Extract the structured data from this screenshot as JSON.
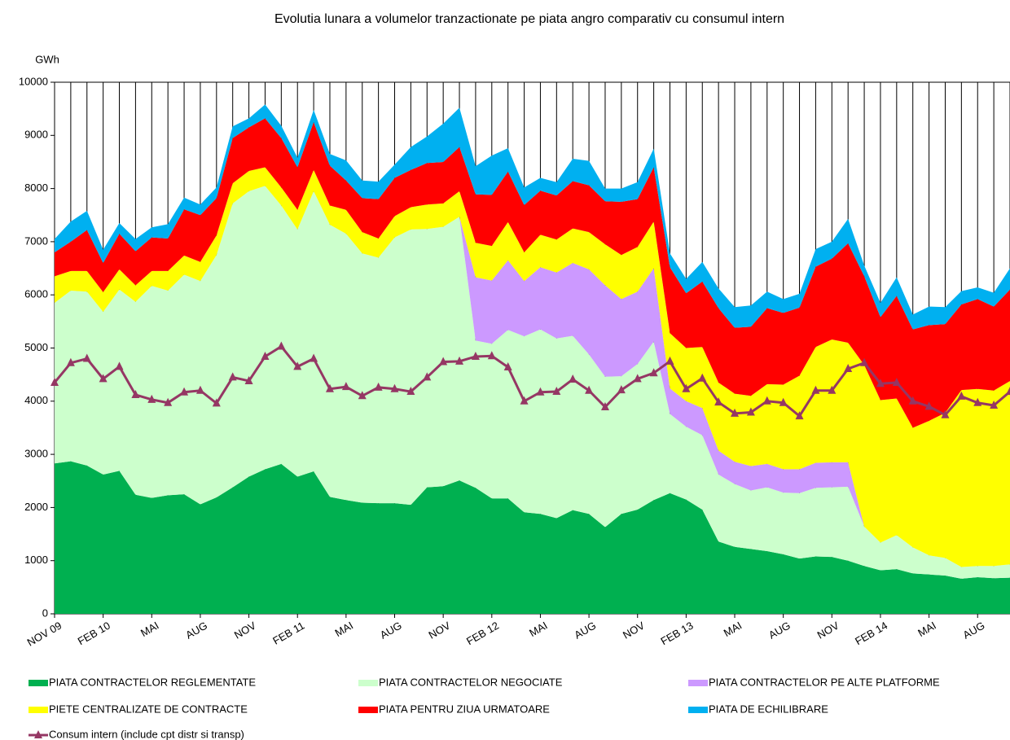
{
  "chart_data": {
    "type": "stacked-area-line",
    "title": "Evolutia lunara a volumelor tranzactionate pe piata angro comparativ cu consumul intern",
    "y_label": "GWh",
    "categories": [
      "NOV 09",
      null,
      null,
      "FEB 10",
      null,
      null,
      "MAI",
      null,
      null,
      "AUG",
      null,
      null,
      "NOV",
      null,
      null,
      "FEB 11",
      null,
      null,
      "MAI",
      null,
      null,
      "AUG",
      null,
      null,
      "NOV",
      null,
      null,
      "FEB 12",
      null,
      null,
      "MAI",
      null,
      null,
      "AUG",
      null,
      null,
      "NOV",
      null,
      null,
      "FEB 13",
      null,
      null,
      "MAI",
      null,
      null,
      "AUG",
      null,
      null,
      "NOV",
      null,
      null,
      "FEB 14",
      null,
      null,
      "MAI",
      null,
      null,
      "AUG",
      null,
      null
    ],
    "ylim": [
      0,
      10000
    ],
    "yticks": [
      0,
      1000,
      2000,
      3000,
      4000,
      5000,
      6000,
      7000,
      8000,
      9000,
      10000
    ],
    "vertical_grid": true,
    "legend": "bottom",
    "series": [
      {
        "name": "PIATA CONTRACTELOR REGLEMENTATE",
        "color": "#00b050",
        "values": [
          2830,
          2870,
          2790,
          2620,
          2690,
          2240,
          2180,
          2230,
          2250,
          2060,
          2190,
          2380,
          2580,
          2720,
          2820,
          2580,
          2680,
          2200,
          2140,
          2090,
          2080,
          2080,
          2050,
          2380,
          2400,
          2510,
          2370,
          2170,
          2170,
          1910,
          1880,
          1800,
          1950,
          1880,
          1630,
          1880,
          1960,
          2140,
          2270,
          2150,
          1960,
          1360,
          1260,
          1220,
          1180,
          1120,
          1040,
          1080,
          1070,
          1000,
          900,
          820,
          840,
          760,
          740,
          720,
          660,
          690,
          670,
          680
        ]
      },
      {
        "name": "PIATA CONTRACTELOR NEGOCIATE",
        "color": "#ccffcc",
        "values": [
          3020,
          3210,
          3270,
          3060,
          3410,
          3630,
          3990,
          3850,
          4130,
          4200,
          4560,
          5340,
          5370,
          5330,
          4860,
          4650,
          5270,
          5120,
          5010,
          4690,
          4620,
          5000,
          5180,
          4860,
          4880,
          4960,
          2770,
          2910,
          3170,
          3310,
          3470,
          3380,
          3280,
          3000,
          2830,
          2590,
          2740,
          2980,
          1490,
          1370,
          1400,
          1260,
          1180,
          1100,
          1200,
          1160,
          1230,
          1290,
          1310,
          1390,
          740,
          520,
          640,
          490,
          360,
          330,
          220,
          210,
          230,
          250
        ]
      },
      {
        "name": "PIATA CONTRACTELOR PE ALTE PLATFORME",
        "color": "#cc99ff",
        "values": [
          0,
          0,
          0,
          0,
          0,
          0,
          0,
          0,
          0,
          0,
          0,
          0,
          0,
          0,
          0,
          0,
          0,
          0,
          0,
          0,
          0,
          0,
          0,
          0,
          0,
          0,
          1190,
          1190,
          1310,
          1040,
          1170,
          1240,
          1370,
          1600,
          1720,
          1450,
          1360,
          1380,
          480,
          480,
          510,
          450,
          420,
          460,
          440,
          440,
          450,
          470,
          470,
          460,
          0,
          0,
          0,
          0,
          0,
          0,
          0,
          0,
          0,
          0
        ]
      },
      {
        "name": "PIETE CENTRALIZATE DE CONTRACTE",
        "color": "#ffff00",
        "values": [
          500,
          370,
          390,
          370,
          380,
          310,
          280,
          370,
          360,
          360,
          370,
          380,
          380,
          350,
          340,
          370,
          400,
          360,
          450,
          400,
          360,
          400,
          420,
          460,
          440,
          480,
          650,
          650,
          720,
          540,
          610,
          620,
          650,
          700,
          770,
          830,
          840,
          880,
          1040,
          1000,
          1150,
          1280,
          1280,
          1320,
          1500,
          1590,
          1760,
          2180,
          2310,
          2250,
          3040,
          2680,
          2570,
          2250,
          2530,
          2730,
          3330,
          3330,
          3300,
          3450
        ]
      },
      {
        "name": "PIATA PENTRU ZIUA URMATOARE",
        "color": "#ff0000",
        "values": [
          450,
          550,
          770,
          550,
          670,
          640,
          630,
          610,
          870,
          880,
          700,
          850,
          820,
          920,
          930,
          800,
          900,
          750,
          550,
          640,
          740,
          720,
          700,
          780,
          780,
          830,
          910,
          960,
          950,
          890,
          830,
          830,
          890,
          880,
          810,
          1000,
          900,
          1020,
          1240,
          1030,
          1230,
          1400,
          1240,
          1300,
          1430,
          1350,
          1280,
          1510,
          1520,
          1870,
          1670,
          1560,
          1930,
          1850,
          1800,
          1670,
          1610,
          1690,
          1580,
          1720
        ]
      },
      {
        "name": "PIATA DE ECHILIBRARE",
        "color": "#00b0f0",
        "values": [
          250,
          380,
          360,
          250,
          200,
          230,
          190,
          270,
          220,
          200,
          200,
          220,
          170,
          260,
          230,
          180,
          230,
          220,
          380,
          330,
          330,
          250,
          430,
          500,
          720,
          740,
          530,
          740,
          440,
          330,
          240,
          250,
          420,
          460,
          240,
          250,
          320,
          350,
          260,
          270,
          370,
          370,
          390,
          400,
          310,
          260,
          260,
          330,
          320,
          460,
          200,
          270,
          350,
          280,
          350,
          320,
          250,
          220,
          260,
          400
        ]
      }
    ],
    "line": {
      "name": "Consum intern (include cpt distr si transp)",
      "color": "#953764",
      "values": [
        4350,
        4720,
        4800,
        4420,
        4650,
        4120,
        4030,
        3970,
        4170,
        4200,
        3960,
        4450,
        4380,
        4840,
        5030,
        4650,
        4800,
        4230,
        4270,
        4100,
        4260,
        4230,
        4180,
        4450,
        4740,
        4750,
        4840,
        4850,
        4640,
        4000,
        4170,
        4180,
        4410,
        4200,
        3890,
        4210,
        4420,
        4530,
        4750,
        4230,
        4430,
        3980,
        3770,
        3790,
        4000,
        3970,
        3720,
        4200,
        4200,
        4610,
        4720,
        4330,
        4350,
        4000,
        3900,
        3740,
        4090,
        3970,
        3920,
        4180
      ]
    }
  }
}
